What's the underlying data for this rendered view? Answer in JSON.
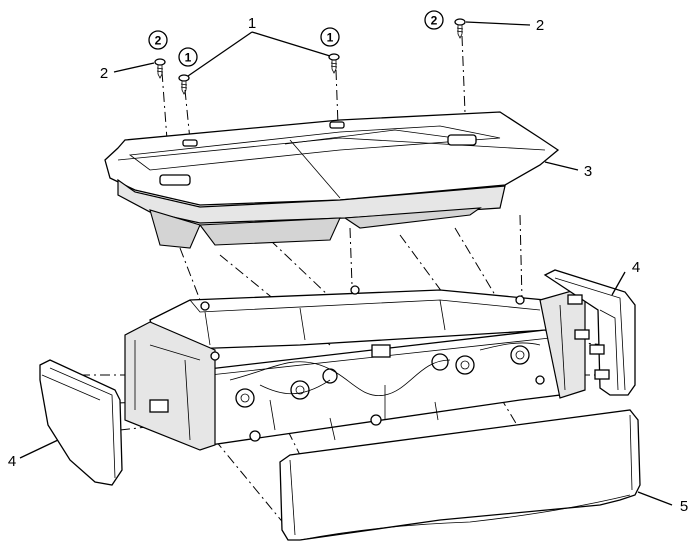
{
  "callouts": {
    "c1": "1",
    "c1a": "1",
    "c1b": "1",
    "c2a": "2",
    "c2b": "2",
    "c2c": "2",
    "c2d": "2",
    "c3": "3",
    "c4a": "4",
    "c4b": "4",
    "c5": "5"
  }
}
